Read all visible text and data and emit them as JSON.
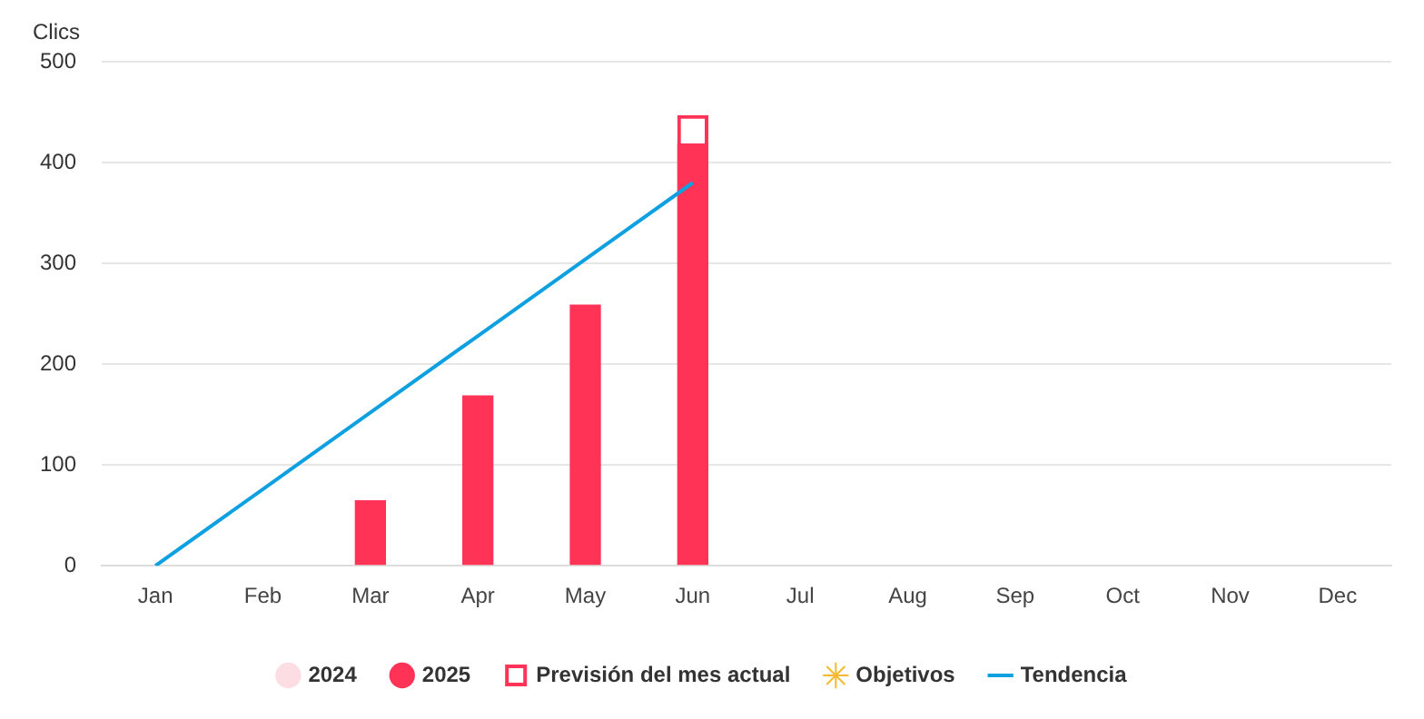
{
  "chart_data": {
    "type": "bar",
    "ylabel": "Clics",
    "categories": [
      "Jan",
      "Feb",
      "Mar",
      "Apr",
      "May",
      "Jun",
      "Jul",
      "Aug",
      "Sep",
      "Oct",
      "Nov",
      "Dec"
    ],
    "series": [
      {
        "name": "2024",
        "color": "#fbdde3",
        "values": [
          null,
          null,
          null,
          null,
          null,
          null,
          null,
          null,
          null,
          null,
          null,
          null
        ]
      },
      {
        "name": "2025",
        "color": "#ff3355",
        "values": [
          null,
          null,
          65,
          169,
          259,
          419,
          null,
          null,
          null,
          null,
          null,
          null
        ]
      },
      {
        "name": "Previsión del mes actual",
        "color": "#ff3355",
        "line_style": "dashed",
        "values": [
          null,
          null,
          null,
          null,
          null,
          28,
          null,
          null,
          null,
          null,
          null,
          null
        ]
      },
      {
        "name": "Objetivos",
        "type": "scatter",
        "marker": "star",
        "color": "#f5b82e",
        "values": [
          null,
          null,
          null,
          null,
          null,
          null,
          null,
          null,
          null,
          null,
          null,
          null
        ]
      },
      {
        "name": "Tendencia",
        "type": "line",
        "color": "#0ea0e0",
        "values": [
          0,
          76,
          152,
          228,
          304,
          380,
          null,
          null,
          null,
          null,
          null,
          null
        ]
      }
    ],
    "stacked": true,
    "ylim": [
      0,
      500
    ],
    "yticks": [
      0,
      100,
      200,
      300,
      400,
      500
    ],
    "grid": "y",
    "legend": "bottom"
  }
}
